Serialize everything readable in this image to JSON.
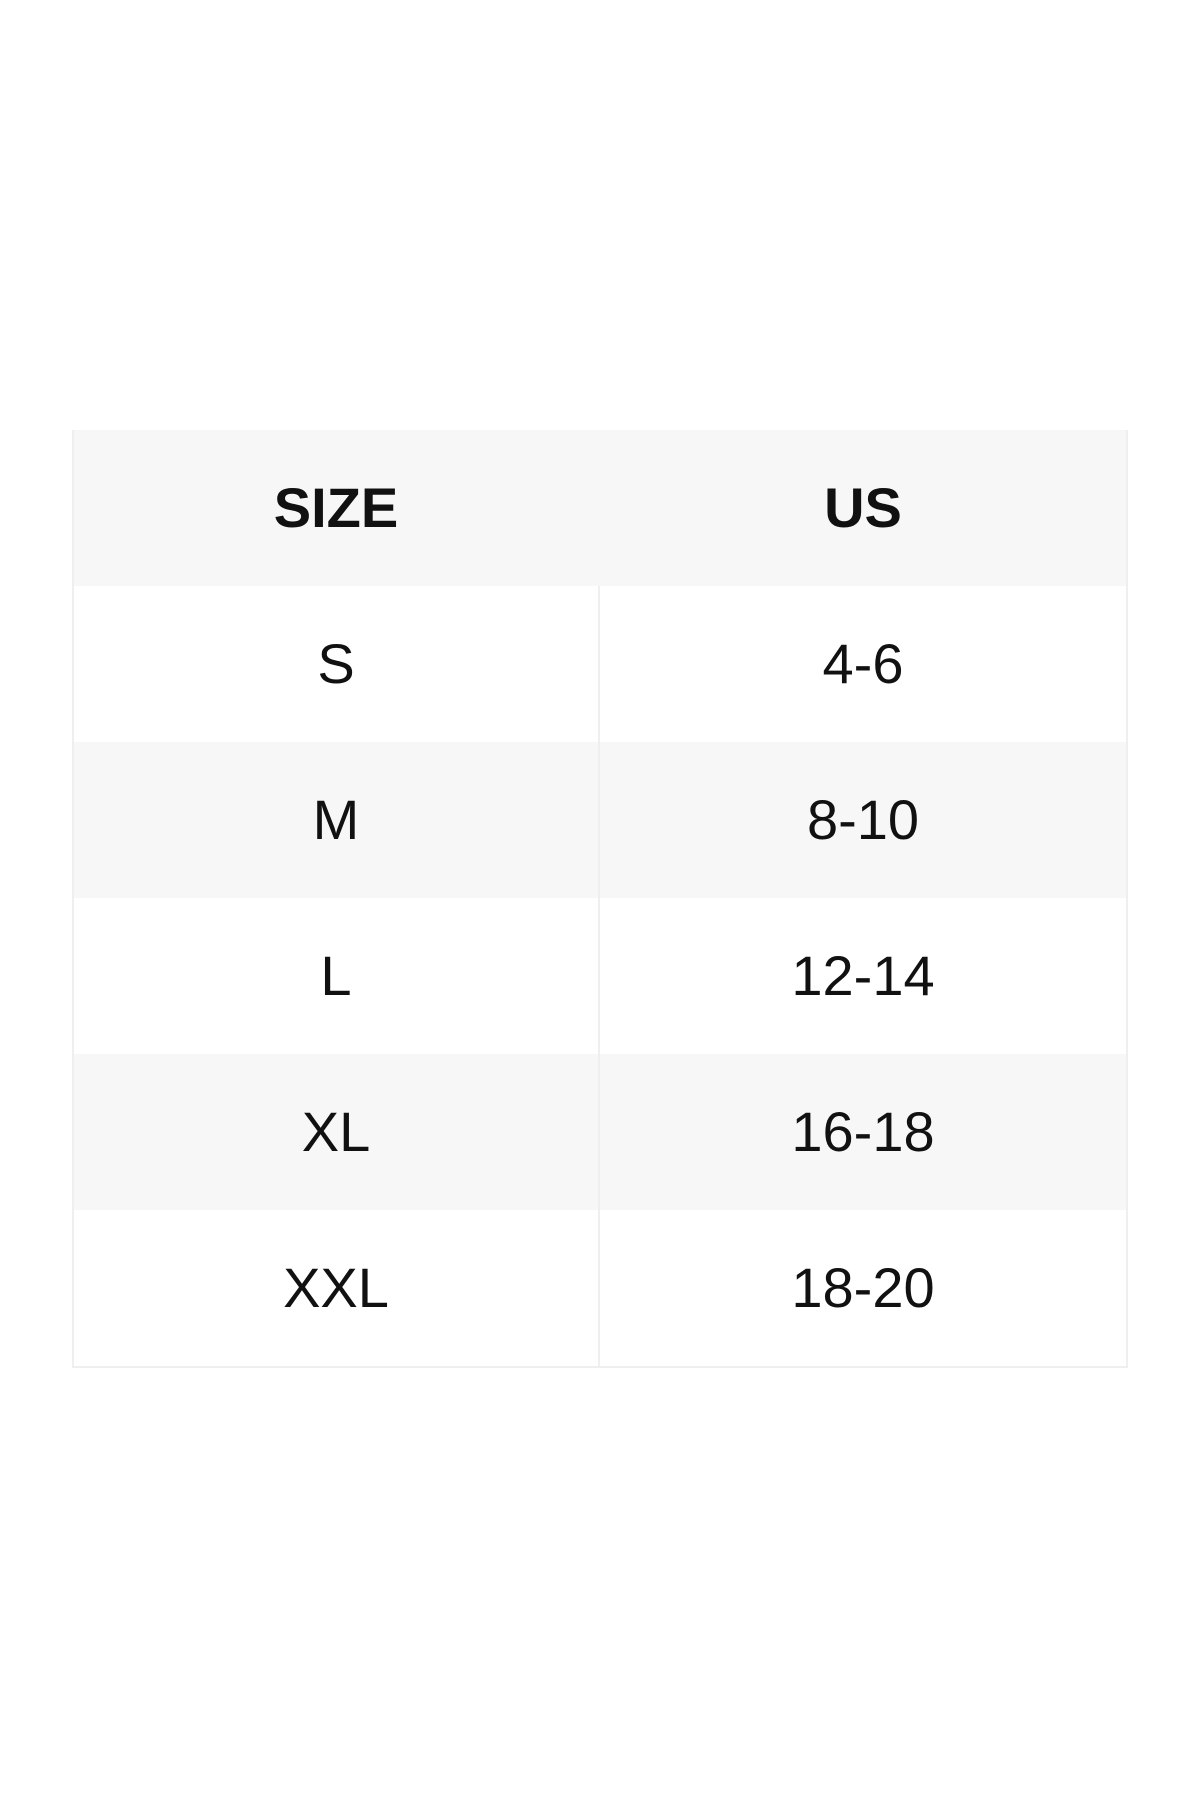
{
  "page": {
    "background_color": "#ffffff",
    "text_color": "#111111"
  },
  "colors": {
    "header_background": "#f7f7f7",
    "zebra_row_background": "#f7f7f7",
    "plain_row_background": "#ffffff",
    "border": "#efefef",
    "text": "#111111"
  },
  "chart_data": {
    "type": "table",
    "columns": [
      "SIZE",
      "US"
    ],
    "rows": [
      [
        "S",
        "4-6"
      ],
      [
        "M",
        "8-10"
      ],
      [
        "L",
        "12-14"
      ],
      [
        "XL",
        "16-18"
      ],
      [
        "XXL",
        "18-20"
      ]
    ],
    "layout": {
      "zebra_striping": true,
      "header_style": "bold",
      "alignment": "center"
    }
  }
}
